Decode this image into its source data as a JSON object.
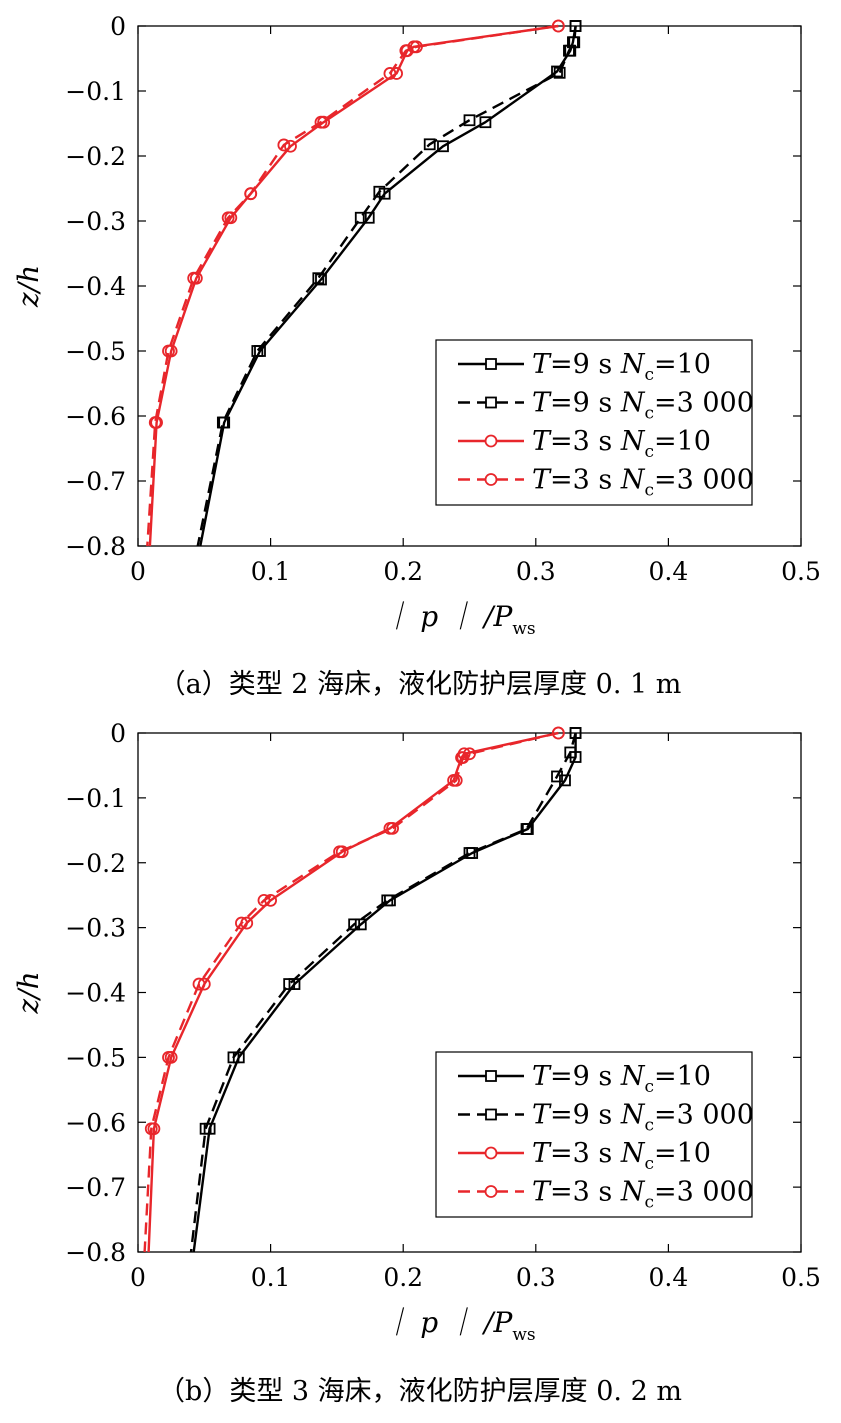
{
  "figure": {
    "colors": {
      "black": "#000000",
      "red": "#e8262b",
      "axis": "#000000"
    }
  },
  "chart_data": [
    {
      "type": "line",
      "caption": "（a）类型 2 海床，液化防护层厚度 0. 1 m",
      "xlabel": {
        "main": "｜ p ｜ /P",
        "sub": "ws"
      },
      "ylabel": "z/h",
      "xlim": [
        0,
        0.5
      ],
      "ylim": [
        -0.8,
        0
      ],
      "xticks": [
        "0",
        "0.1",
        "0.2",
        "0.3",
        "0.4",
        "0.5"
      ],
      "yticks": [
        "0",
        "−0.1",
        "−0.2",
        "−0.3",
        "−0.4",
        "−0.5",
        "−0.6",
        "−0.7",
        "−0.8"
      ],
      "grid": false,
      "legend_position": "lower-right",
      "series": [
        {
          "name": "T=9 s Nc=10",
          "legend": {
            "T": "T",
            "eq1": "=9 s ",
            "N": "N",
            "c": "c",
            "eq2": "=10"
          },
          "color": "#000000",
          "linestyle": "solid",
          "marker": "square",
          "x": [
            0.33,
            0.328,
            0.326,
            0.316,
            0.262,
            0.23,
            0.186,
            0.174,
            0.138,
            0.092,
            0.065,
            0.047
          ],
          "y": [
            0,
            -0.025,
            -0.038,
            -0.07,
            -0.148,
            -0.185,
            -0.258,
            -0.295,
            -0.39,
            -0.5,
            -0.61,
            -0.8
          ]
        },
        {
          "name": "T=9 s Nc=3 000",
          "legend": {
            "T": "T",
            "eq1": "=9 s ",
            "N": "N",
            "c": "c",
            "eq2": "=3 000"
          },
          "color": "#000000",
          "linestyle": "dashed",
          "marker": "square",
          "x": [
            0.33,
            0.329,
            0.325,
            0.318,
            0.25,
            0.22,
            0.182,
            0.168,
            0.136,
            0.09,
            0.064,
            0.045
          ],
          "y": [
            0,
            -0.025,
            -0.038,
            -0.072,
            -0.145,
            -0.182,
            -0.255,
            -0.295,
            -0.388,
            -0.5,
            -0.61,
            -0.8
          ]
        },
        {
          "name": "T=3 s Nc=10",
          "legend": {
            "T": "T",
            "eq1": "=3 s ",
            "N": "N",
            "c": "c",
            "eq2": "=10"
          },
          "color": "#e8262b",
          "linestyle": "solid",
          "marker": "circle",
          "x": [
            0.317,
            0.208,
            0.203,
            0.195,
            0.14,
            0.115,
            0.085,
            0.07,
            0.044,
            0.025,
            0.014,
            0.009
          ],
          "y": [
            0,
            -0.032,
            -0.038,
            -0.073,
            -0.148,
            -0.185,
            -0.258,
            -0.295,
            -0.388,
            -0.5,
            -0.61,
            -0.8
          ]
        },
        {
          "name": "T=3 s Nc=3 000",
          "legend": {
            "T": "T",
            "eq1": "=3 s ",
            "N": "N",
            "c": "c",
            "eq2": "=3 000"
          },
          "color": "#e8262b",
          "linestyle": "dashed",
          "marker": "circle",
          "x": [
            0.317,
            0.21,
            0.202,
            0.19,
            0.138,
            0.11,
            0.085,
            0.068,
            0.042,
            0.023,
            0.013,
            0.007
          ],
          "y": [
            0,
            -0.032,
            -0.038,
            -0.073,
            -0.148,
            -0.183,
            -0.258,
            -0.295,
            -0.388,
            -0.5,
            -0.61,
            -0.8
          ]
        }
      ]
    },
    {
      "type": "line",
      "caption": "（b）类型 3 海床，液化防护层厚度 0. 2 m",
      "xlabel": {
        "main": "｜ p ｜ /P",
        "sub": "ws"
      },
      "ylabel": "z/h",
      "xlim": [
        0,
        0.5
      ],
      "ylim": [
        -0.8,
        0
      ],
      "xticks": [
        "0",
        "0.1",
        "0.2",
        "0.3",
        "0.4",
        "0.5"
      ],
      "yticks": [
        "0",
        "−0.1",
        "−0.2",
        "−0.3",
        "−0.4",
        "−0.5",
        "−0.6",
        "−0.7",
        "−0.8"
      ],
      "grid": false,
      "legend_position": "lower-right",
      "series": [
        {
          "name": "T=9 s Nc=10",
          "legend": {
            "T": "T",
            "eq1": "=9 s ",
            "N": "N",
            "c": "c",
            "eq2": "=10"
          },
          "color": "#000000",
          "linestyle": "solid",
          "marker": "square",
          "x": [
            0.33,
            0.33,
            0.322,
            0.294,
            0.252,
            0.19,
            0.168,
            0.118,
            0.076,
            0.054,
            0.042
          ],
          "y": [
            0,
            -0.037,
            -0.073,
            -0.148,
            -0.185,
            -0.258,
            -0.295,
            -0.387,
            -0.5,
            -0.61,
            -0.8
          ]
        },
        {
          "name": "T=9 s Nc=3 000",
          "legend": {
            "T": "T",
            "eq1": "=9 s ",
            "N": "N",
            "c": "c",
            "eq2": "=3 000"
          },
          "color": "#000000",
          "linestyle": "dashed",
          "marker": "square",
          "x": [
            0.33,
            0.326,
            0.316,
            0.293,
            0.25,
            0.188,
            0.163,
            0.114,
            0.072,
            0.051,
            0.04
          ],
          "y": [
            0,
            -0.03,
            -0.067,
            -0.148,
            -0.185,
            -0.258,
            -0.295,
            -0.387,
            -0.5,
            -0.61,
            -0.8
          ]
        },
        {
          "name": "T=3 s Nc=10",
          "legend": {
            "T": "T",
            "eq1": "=3 s ",
            "N": "N",
            "c": "c",
            "eq2": "=10"
          },
          "color": "#e8262b",
          "linestyle": "solid",
          "marker": "circle",
          "x": [
            0.317,
            0.246,
            0.244,
            0.238,
            0.19,
            0.154,
            0.1,
            0.082,
            0.05,
            0.025,
            0.012,
            0.008
          ],
          "y": [
            0,
            -0.032,
            -0.038,
            -0.073,
            -0.147,
            -0.183,
            -0.258,
            -0.293,
            -0.387,
            -0.5,
            -0.61,
            -0.8
          ]
        },
        {
          "name": "T=3 s Nc=3 000",
          "legend": {
            "T": "T",
            "eq1": "=3 s ",
            "N": "N",
            "c": "c",
            "eq2": "=3 000"
          },
          "color": "#e8262b",
          "linestyle": "dashed",
          "marker": "circle",
          "x": [
            0.317,
            0.25,
            0.245,
            0.24,
            0.192,
            0.152,
            0.095,
            0.078,
            0.046,
            0.023,
            0.01,
            0.005
          ],
          "y": [
            0,
            -0.032,
            -0.038,
            -0.073,
            -0.147,
            -0.183,
            -0.258,
            -0.293,
            -0.387,
            -0.5,
            -0.61,
            -0.8
          ]
        }
      ]
    }
  ]
}
